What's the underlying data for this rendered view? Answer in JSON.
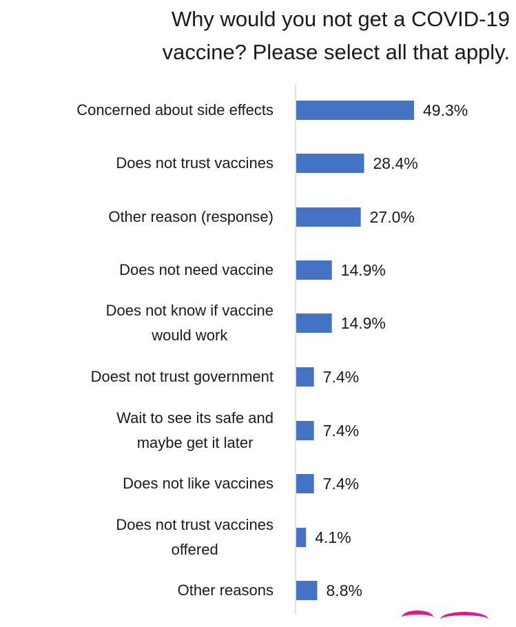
{
  "chart_data": {
    "type": "bar",
    "orientation": "horizontal",
    "title_lines": [
      "Why would you not get a COVID-19",
      "vaccine? Please select all that apply."
    ],
    "categories": [
      [
        "Concerned about side effects"
      ],
      [
        "Does not trust vaccines"
      ],
      [
        "Other reason (response)"
      ],
      [
        "Does not need vaccine"
      ],
      [
        "Does not know if vaccine",
        "would work"
      ],
      [
        "Doest not trust government"
      ],
      [
        "Wait to see its safe and",
        "maybe get it later"
      ],
      [
        "Does not like vaccines"
      ],
      [
        "Does not trust vaccines",
        "offered"
      ],
      [
        "Other reasons"
      ]
    ],
    "values": [
      49.3,
      28.4,
      27.0,
      14.9,
      14.9,
      7.4,
      7.4,
      7.4,
      4.1,
      8.8
    ],
    "value_labels": [
      "49.3%",
      "28.4%",
      "27.0%",
      "14.9%",
      "14.9%",
      "7.4%",
      "7.4%",
      "7.4%",
      "4.1%",
      "8.8%"
    ],
    "bar_color": "#4472c4",
    "axis_color": "#d9d9d9",
    "xlim": [
      0,
      100
    ],
    "grid": false,
    "legend": "none"
  }
}
